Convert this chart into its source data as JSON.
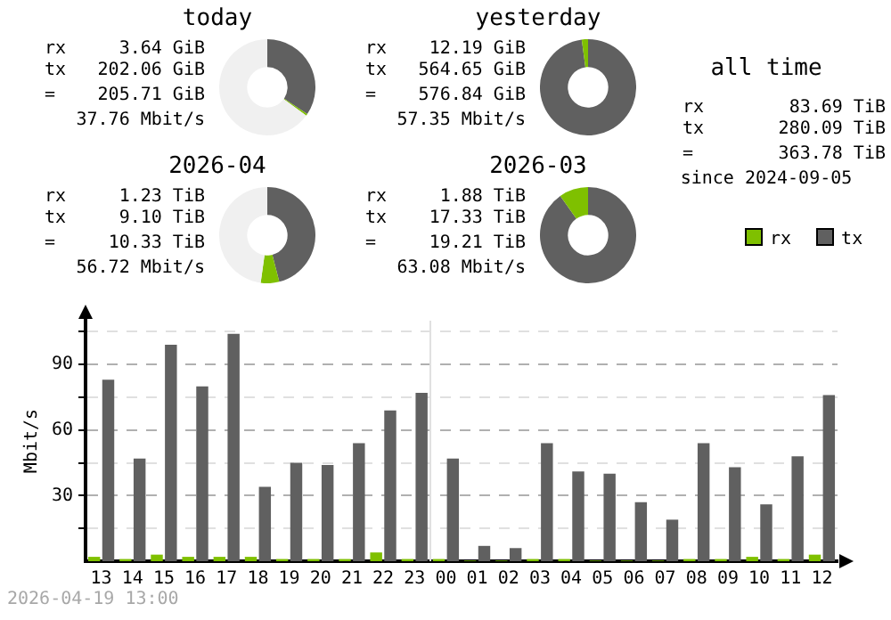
{
  "chart_data": [
    {
      "type": "donut",
      "title": "today",
      "categories": [
        null,
        null,
        null
      ],
      "values": [
        34.4,
        0.6,
        65
      ],
      "colors": [
        "#606060",
        "#7fc000",
        "#f0f0f0"
      ],
      "annotations": [
        "rx",
        "3.64 GiB",
        "tx",
        "202.06 GiB",
        "=",
        "205.71 GiB",
        "37.76 Mbit/s"
      ]
    },
    {
      "type": "donut",
      "title": "yesterday",
      "categories": [
        null,
        null
      ],
      "values": [
        97.9,
        2.1
      ],
      "colors": [
        "#606060",
        "#7fc000"
      ],
      "annotations": [
        "rx",
        "12.19 GiB",
        "tx",
        "564.65 GiB",
        "=",
        "576.84 GiB",
        "57.35 Mbit/s"
      ]
    },
    {
      "type": "other",
      "title": "all time",
      "annotations": [
        "rx",
        "83.69 TiB",
        "tx",
        "280.09 TiB",
        "=",
        "363.78 TiB",
        "since 2024-09-05"
      ]
    },
    {
      "type": "donut",
      "title": "2026-04",
      "categories": [
        null,
        null,
        null
      ],
      "values": [
        46,
        6.2,
        47.8
      ],
      "colors": [
        "#606060",
        "#7fc000",
        "#f0f0f0"
      ],
      "annotations": [
        "rx",
        "1.23 TiB",
        "tx",
        "9.10 TiB",
        "=",
        "10.33 TiB",
        "56.72 Mbit/s"
      ]
    },
    {
      "type": "donut",
      "title": "2026-03",
      "categories": [
        null,
        null
      ],
      "values": [
        90.2,
        9.8
      ],
      "colors": [
        "#606060",
        "#7fc000"
      ],
      "annotations": [
        "rx",
        "1.88 TiB",
        "tx",
        "17.33 TiB",
        "=",
        "19.21 TiB",
        "63.08 Mbit/s"
      ]
    },
    {
      "type": "bar",
      "ylabel": "Mbit/s",
      "categories": [
        "13",
        "14",
        "15",
        "16",
        "17",
        "18",
        "19",
        "20",
        "21",
        "22",
        "23",
        "00",
        "01",
        "02",
        "03",
        "04",
        "05",
        "06",
        "07",
        "08",
        "09",
        "10",
        "11",
        "12"
      ],
      "series": [
        {
          "name": "rx",
          "color": "#7fc000",
          "values": [
            2,
            1,
            3,
            2,
            2,
            2,
            1,
            1,
            1,
            4,
            1,
            1,
            0.3,
            0.3,
            1,
            1,
            0.3,
            0.3,
            0.3,
            1,
            1,
            2,
            1,
            3
          ]
        },
        {
          "name": "tx",
          "color": "#606060",
          "values": [
            83,
            47,
            99,
            80,
            104,
            34,
            45,
            44,
            54,
            69,
            77,
            47,
            7,
            6,
            54,
            41,
            40,
            27,
            19,
            54,
            43,
            26,
            48,
            76
          ]
        }
      ],
      "ylim": [
        0,
        110
      ],
      "yticks": [
        {
          "value": 15,
          "label": null
        },
        30,
        {
          "value": 45,
          "label": null
        },
        60,
        {
          "value": 75,
          "label": null
        },
        90,
        {
          "value": 105,
          "label": null
        }
      ],
      "grid": "y",
      "legend": "top right",
      "ref_lines": [
        {
          "axis": "x",
          "value": "00",
          "color": "#e0e0e0"
        }
      ],
      "annotations": [
        "2026-04-19 13:00"
      ]
    }
  ]
}
